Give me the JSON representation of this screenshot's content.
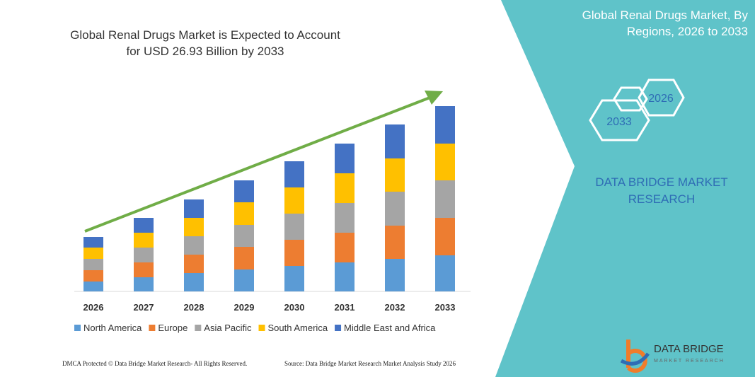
{
  "chart_data": {
    "type": "bar",
    "stacked": true,
    "title": "Global Renal Drugs Market is Expected to Account for USD 26.93 Billion by 2033",
    "categories": [
      "2026",
      "2027",
      "2028",
      "2029",
      "2030",
      "2031",
      "2032",
      "2033"
    ],
    "series": [
      {
        "name": "North America",
        "color": "#5b9bd5",
        "values": [
          14,
          20,
          26,
          31,
          36,
          41,
          46,
          51
        ]
      },
      {
        "name": "Europe",
        "color": "#ed7d31",
        "values": [
          16,
          21,
          26,
          32,
          37,
          42,
          47,
          53
        ]
      },
      {
        "name": "Asia Pacific",
        "color": "#a5a5a5",
        "values": [
          16,
          21,
          26,
          31,
          37,
          42,
          48,
          53
        ]
      },
      {
        "name": "South America",
        "color": "#ffc000",
        "values": [
          16,
          21,
          26,
          32,
          37,
          42,
          47,
          52
        ]
      },
      {
        "name": "Middle East and Africa",
        "color": "#4472c4",
        "values": [
          15,
          21,
          26,
          31,
          37,
          42,
          48,
          53
        ]
      }
    ],
    "ylim": [
      0,
      262
    ]
  },
  "side_panel": {
    "title": "Global Renal Drugs Market, By Regions, 2026 to 2033",
    "hexagons": [
      "2026",
      "2033"
    ],
    "brand": "DATA BRIDGE MARKET RESEARCH"
  },
  "logo": {
    "name": "DATA BRIDGE",
    "tagline": "MARKET RESEARCH"
  },
  "footer": {
    "left": "DMCA Protected © Data Bridge Market Research- All Rights Reserved.",
    "right": "Source: Data Bridge Market Research Market Analysis Study 2026"
  }
}
